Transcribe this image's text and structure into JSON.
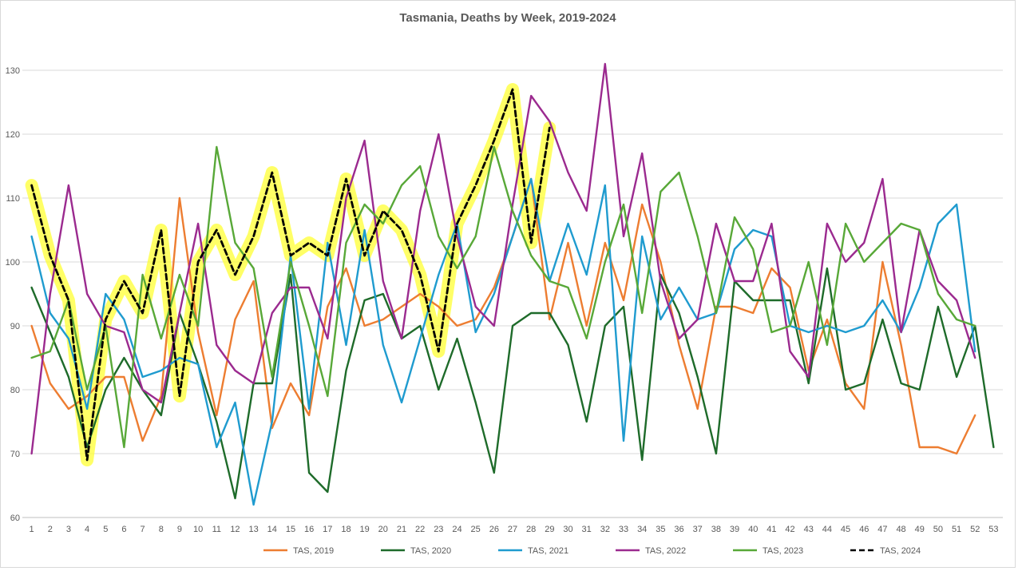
{
  "chart_data": {
    "type": "line",
    "title": "Tasmania, Deaths by Week, 2019-2024",
    "xlabel": "",
    "ylabel": "",
    "ylim": [
      60,
      130
    ],
    "yticks": [
      60,
      70,
      80,
      90,
      100,
      110,
      120,
      130
    ],
    "x": [
      1,
      2,
      3,
      4,
      5,
      6,
      7,
      8,
      9,
      10,
      11,
      12,
      13,
      14,
      15,
      16,
      17,
      18,
      19,
      20,
      21,
      22,
      23,
      24,
      25,
      26,
      27,
      28,
      29,
      30,
      31,
      32,
      33,
      34,
      35,
      36,
      37,
      38,
      39,
      40,
      41,
      42,
      43,
      44,
      45,
      46,
      47,
      48,
      49,
      50,
      51,
      52,
      53
    ],
    "grid": "horizontal",
    "legend_position": "bottom",
    "series": [
      {
        "name": "TAS, 2019",
        "color": "#ED7D31",
        "dash": "solid",
        "values": [
          90,
          81,
          77,
          79,
          82,
          82,
          72,
          79,
          110,
          89,
          76,
          91,
          97,
          74,
          81,
          76,
          93,
          99,
          90,
          91,
          93,
          95,
          93,
          90,
          91,
          96,
          104,
          113,
          91,
          103,
          90,
          103,
          94,
          109,
          100,
          87,
          77,
          93,
          93,
          92,
          99,
          96,
          83,
          91,
          81,
          77,
          100,
          87,
          71,
          71,
          70,
          76,
          null
        ]
      },
      {
        "name": "TAS, 2020",
        "color": "#1E6B2A",
        "dash": "solid",
        "values": [
          96,
          89,
          82,
          71,
          80,
          85,
          80,
          76,
          92,
          84,
          75,
          63,
          81,
          81,
          98,
          67,
          64,
          83,
          94,
          95,
          88,
          90,
          80,
          88,
          78,
          67,
          90,
          92,
          92,
          87,
          75,
          90,
          93,
          69,
          98,
          92,
          82,
          70,
          97,
          94,
          94,
          94,
          81,
          99,
          80,
          81,
          91,
          81,
          80,
          93,
          82,
          90,
          71
        ]
      },
      {
        "name": "TAS, 2021",
        "color": "#1F9BCF",
        "dash": "solid",
        "values": [
          104,
          92,
          88,
          77,
          95,
          91,
          82,
          83,
          85,
          84,
          71,
          78,
          62,
          75,
          101,
          77,
          103,
          87,
          105,
          87,
          78,
          88,
          98,
          106,
          89,
          95,
          104,
          113,
          97,
          106,
          98,
          112,
          72,
          104,
          91,
          96,
          91,
          92,
          102,
          105,
          104,
          90,
          89,
          90,
          89,
          90,
          94,
          89,
          96,
          106,
          109,
          86,
          null
        ]
      },
      {
        "name": "TAS, 2022",
        "color": "#9B2A8F",
        "dash": "solid",
        "values": [
          70,
          95,
          112,
          95,
          90,
          89,
          80,
          78,
          92,
          106,
          87,
          83,
          81,
          92,
          96,
          96,
          88,
          110,
          119,
          97,
          88,
          108,
          120,
          104,
          93,
          90,
          109,
          126,
          122,
          114,
          108,
          131,
          104,
          117,
          97,
          88,
          91,
          106,
          97,
          97,
          106,
          86,
          82,
          106,
          100,
          103,
          113,
          89,
          105,
          97,
          94,
          85,
          null
        ]
      },
      {
        "name": "TAS, 2023",
        "color": "#58A838",
        "dash": "solid",
        "values": [
          85,
          86,
          94,
          80,
          90,
          71,
          98,
          88,
          98,
          90,
          118,
          103,
          99,
          82,
          100,
          90,
          79,
          103,
          109,
          106,
          112,
          115,
          104,
          99,
          104,
          118,
          108,
          101,
          97,
          96,
          88,
          100,
          109,
          92,
          111,
          114,
          104,
          92,
          107,
          102,
          89,
          90,
          100,
          87,
          106,
          100,
          103,
          106,
          105,
          95,
          91,
          90,
          null
        ]
      },
      {
        "name": "TAS, 2024",
        "color": "#000000",
        "dash": "dashed",
        "values": [
          112,
          101,
          94,
          69,
          91,
          97,
          92,
          105,
          79,
          100,
          105,
          98,
          104,
          114,
          101,
          103,
          101,
          113,
          101,
          108,
          105,
          98,
          86,
          106,
          112,
          119,
          127,
          103,
          121,
          null,
          null,
          null,
          null,
          null,
          null,
          null,
          null,
          null,
          null,
          null,
          null,
          null,
          null,
          null,
          null,
          null,
          null,
          null,
          null,
          null,
          null,
          null,
          null
        ]
      }
    ],
    "highlight": {
      "color": "#FFFF33",
      "applies_to": "TAS, 2024"
    }
  }
}
